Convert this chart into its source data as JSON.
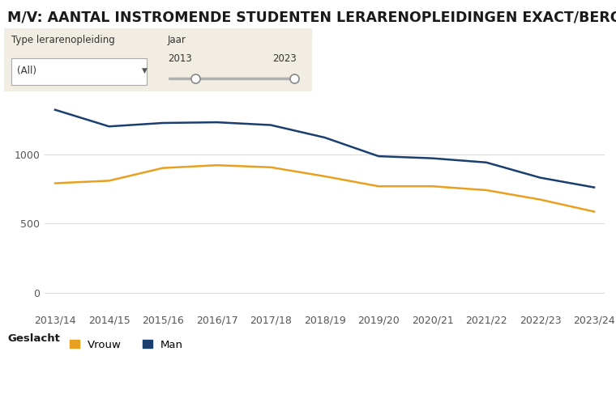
{
  "title": "M/V: AANTAL INSTROMENDE STUDENTEN LERARENOPLEIDINGEN EXACT/BEROEPSGERICHT",
  "categories": [
    "2013/14",
    "2014/15",
    "2015/16",
    "2016/17",
    "2017/18",
    "2018/19",
    "2019/20",
    "2020/21",
    "2021/22",
    "2022/23",
    "2023/24"
  ],
  "man": [
    1320,
    1200,
    1225,
    1230,
    1210,
    1120,
    985,
    970,
    940,
    830,
    760
  ],
  "vrouw": [
    790,
    808,
    900,
    920,
    905,
    840,
    768,
    768,
    740,
    672,
    585
  ],
  "man_color": "#1a3f6f",
  "vrouw_color": "#E8A020",
  "ylim_min": -120,
  "ylim_max": 1430,
  "yticks": [
    0,
    500,
    1000
  ],
  "bg_color": "#ffffff",
  "grid_color": "#d8d8d8",
  "title_fontsize": 12.5,
  "tick_fontsize": 9,
  "legend_geslacht": "Geslacht",
  "legend_vrouw": "Vrouw",
  "legend_man": "Man",
  "filter_label1": "Type lerarenopleiding",
  "filter_value1": "(All)",
  "filter_label2": "Jaar",
  "filter_year_start": "2013",
  "filter_year_end": "2023",
  "filter_bg": "#f2ede3"
}
